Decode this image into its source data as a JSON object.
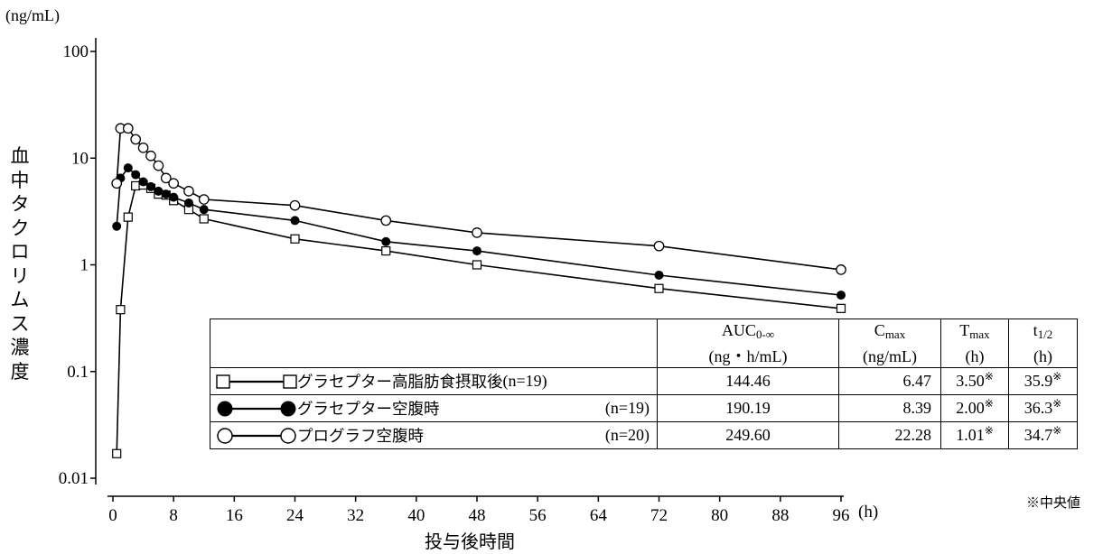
{
  "chart_data": {
    "type": "line",
    "y_scale": "log",
    "y_unit": "(ng/mL)",
    "y_label": "血中タクロリムス濃度",
    "x_label": "投与後時間",
    "x_unit": "(h)",
    "x_ticks": [
      0,
      8,
      16,
      24,
      32,
      40,
      48,
      56,
      64,
      72,
      80,
      88,
      96
    ],
    "y_ticks": [
      {
        "value": 100,
        "label": "100"
      },
      {
        "value": 10,
        "label": "10"
      },
      {
        "value": 1,
        "label": "1"
      },
      {
        "value": 0.1,
        "label": "0.1"
      },
      {
        "value": 0.01,
        "label": "0.01"
      }
    ],
    "xlim": [
      0,
      96
    ],
    "ylim": [
      0.01,
      100
    ],
    "series": [
      {
        "name": "グラセプター高脂肪食摂取後",
        "marker": "open-square",
        "x": [
          0.5,
          1,
          2,
          3,
          4,
          5,
          6,
          7,
          8,
          10,
          12,
          24,
          36,
          48,
          72,
          96
        ],
        "y": [
          0.017,
          0.38,
          2.8,
          5.5,
          5.6,
          5.2,
          4.6,
          4.5,
          4.0,
          3.3,
          2.7,
          1.75,
          1.35,
          1.0,
          0.6,
          0.39
        ]
      },
      {
        "name": "グラセプター空腹時",
        "marker": "filled-circle",
        "x": [
          0.5,
          1,
          2,
          3,
          4,
          5,
          6,
          7,
          8,
          10,
          12,
          24,
          36,
          48,
          72,
          96
        ],
        "y": [
          2.3,
          6.5,
          8.1,
          7.0,
          6.0,
          5.4,
          4.9,
          4.6,
          4.3,
          3.8,
          3.3,
          2.6,
          1.65,
          1.35,
          0.8,
          0.52
        ]
      },
      {
        "name": "プログラフ空腹時",
        "marker": "open-circle",
        "x": [
          0.5,
          1,
          2,
          3,
          4,
          5,
          6,
          7,
          8,
          10,
          12,
          24,
          36,
          48,
          72,
          96
        ],
        "y": [
          5.8,
          19.0,
          19.0,
          15.0,
          12.5,
          10.5,
          8.5,
          6.5,
          5.8,
          4.9,
          4.1,
          3.6,
          2.6,
          2.0,
          1.5,
          0.9
        ]
      }
    ]
  },
  "table": {
    "headers": [
      {
        "main": "AUC",
        "sub": "0-∞",
        "unit": "(ng・h/mL)"
      },
      {
        "main": "C",
        "sub": "max",
        "unit": "(ng/mL)"
      },
      {
        "main": "T",
        "sub": "max",
        "unit": "(h)"
      },
      {
        "main": "t",
        "sub": "1/2",
        "unit": "(h)"
      }
    ],
    "rows": [
      {
        "label": "グラセプター高脂肪食摂取後",
        "n": "(n=19)",
        "auc": "144.46",
        "cmax": "6.47",
        "tmax": "3.50",
        "thalf": "35.9"
      },
      {
        "label": "グラセプター空腹時",
        "n": "(n=19)",
        "auc": "190.19",
        "cmax": "8.39",
        "tmax": "2.00",
        "thalf": "36.3"
      },
      {
        "label": "プログラフ空腹時",
        "n": "(n=20)",
        "auc": "249.60",
        "cmax": "22.28",
        "tmax": "1.01",
        "thalf": "34.7"
      }
    ],
    "asterisk": "※",
    "footnote": "※中央値"
  }
}
